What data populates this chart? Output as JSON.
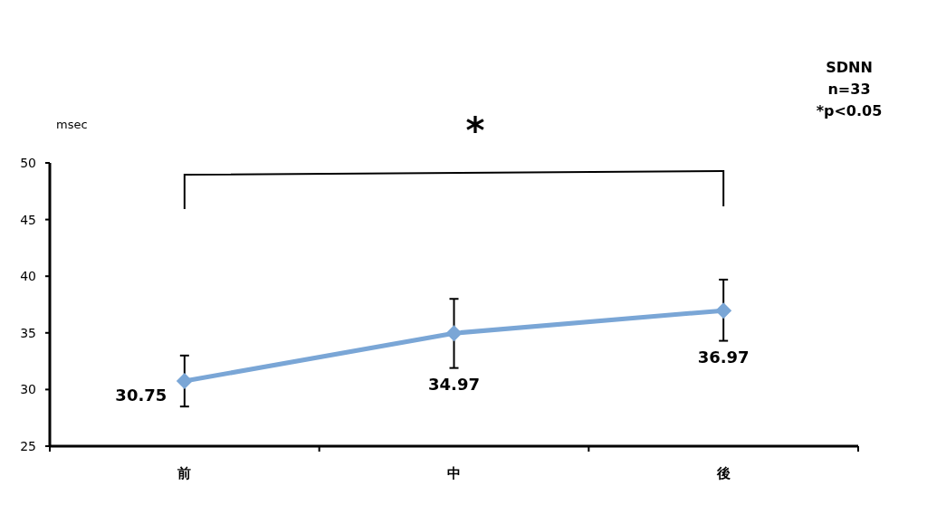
{
  "chart_data": {
    "type": "line",
    "ylabel": "msec",
    "categories": [
      "前",
      "中",
      "後"
    ],
    "series": [
      {
        "color": "#7aa6d6",
        "values": [
          30.75,
          34.97,
          36.97
        ],
        "errors": [
          [
            28.5,
            33.0
          ],
          [
            31.9,
            38.0
          ],
          [
            34.3,
            39.7
          ]
        ]
      }
    ],
    "ylim": [
      25,
      50
    ],
    "yticks": [
      25,
      30,
      35,
      40,
      45,
      50
    ],
    "marker": "diamond",
    "data_labels": true,
    "grid": false,
    "annotations": [
      "*",
      "SDNN",
      "n=33",
      "*p<0.05"
    ]
  }
}
